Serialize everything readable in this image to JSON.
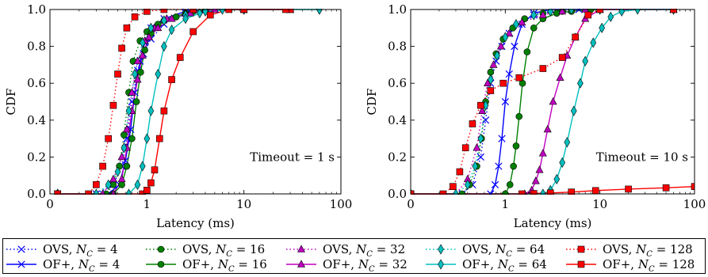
{
  "chart_data": [
    {
      "type": "line",
      "xscale": "log",
      "xlabel": "Latency (ms)",
      "ylabel": "CDF",
      "xlim": [
        0.1,
        100
      ],
      "ylim": [
        0.0,
        1.0
      ],
      "xticks": [
        "0",
        "1",
        "10",
        "100"
      ],
      "yticks": [
        "0.0",
        "0.2",
        "0.4",
        "0.6",
        "0.8",
        "1.0"
      ],
      "annotation": "Timeout = 1 s",
      "series": [
        {
          "key": "ovs4",
          "color": "#0000ff",
          "marker": "x",
          "dashed": true,
          "x": [
            0.12,
            0.3,
            0.45,
            0.55,
            0.62,
            0.7,
            0.8,
            0.92,
            1.1,
            1.5,
            2.5,
            4,
            10,
            30
          ],
          "y": [
            0.0,
            0.0,
            0.05,
            0.15,
            0.3,
            0.5,
            0.67,
            0.76,
            0.84,
            0.92,
            0.98,
            1.0,
            1.0,
            1.0
          ]
        },
        {
          "key": "of4",
          "color": "#0000ff",
          "marker": "x",
          "dashed": false,
          "x": [
            0.12,
            0.4,
            0.52,
            0.6,
            0.68,
            0.75,
            0.85,
            0.95,
            1.1,
            1.5,
            2.5,
            5,
            30
          ],
          "y": [
            0.0,
            0.0,
            0.05,
            0.18,
            0.35,
            0.55,
            0.72,
            0.82,
            0.9,
            0.95,
            0.99,
            1.0,
            1.0
          ]
        },
        {
          "key": "ovs16",
          "color": "#008000",
          "marker": "o",
          "dashed": true,
          "x": [
            0.12,
            0.38,
            0.45,
            0.52,
            0.58,
            0.65,
            0.72,
            0.85,
            1.0,
            1.3,
            2,
            3,
            10,
            30
          ],
          "y": [
            0.0,
            0.0,
            0.05,
            0.15,
            0.32,
            0.55,
            0.72,
            0.83,
            0.88,
            0.92,
            0.96,
            0.99,
            1.0,
            1.0
          ]
        },
        {
          "key": "of16",
          "color": "#008000",
          "marker": "o",
          "dashed": false,
          "x": [
            0.12,
            0.45,
            0.55,
            0.62,
            0.7,
            0.78,
            0.86,
            0.95,
            1.1,
            1.5,
            2.5,
            4,
            10,
            30
          ],
          "y": [
            0.0,
            0.0,
            0.05,
            0.15,
            0.3,
            0.5,
            0.66,
            0.78,
            0.87,
            0.94,
            0.98,
            1.0,
            1.0,
            1.0
          ]
        },
        {
          "key": "ovs32",
          "color": "#bf00bf",
          "marker": "^",
          "dashed": true,
          "x": [
            0.12,
            0.35,
            0.45,
            0.55,
            0.62,
            0.7,
            0.8,
            0.95,
            1.2,
            1.6,
            2.5,
            4,
            10,
            30
          ],
          "y": [
            0.0,
            0.0,
            0.08,
            0.2,
            0.35,
            0.55,
            0.72,
            0.83,
            0.9,
            0.95,
            0.98,
            1.0,
            1.0,
            1.0
          ]
        },
        {
          "key": "of32",
          "color": "#bf00bf",
          "marker": "^",
          "dashed": false,
          "x": [
            0.12,
            0.45,
            0.55,
            0.62,
            0.7,
            0.8,
            0.9,
            1.05,
            1.3,
            1.8,
            2.8,
            5,
            30
          ],
          "y": [
            0.0,
            0.0,
            0.08,
            0.25,
            0.45,
            0.62,
            0.75,
            0.85,
            0.9,
            0.95,
            0.98,
            1.0,
            1.0
          ]
        },
        {
          "key": "ovs64",
          "color": "#00bfbf",
          "marker": "d",
          "dashed": true,
          "x": [
            0.12,
            0.3,
            0.4,
            0.5,
            0.58,
            0.65,
            0.75,
            0.9,
            1.1,
            1.5,
            2.5,
            4,
            10,
            60
          ],
          "y": [
            0.0,
            0.0,
            0.05,
            0.12,
            0.25,
            0.45,
            0.65,
            0.82,
            0.9,
            0.94,
            0.97,
            0.99,
            1.0,
            1.0
          ]
        },
        {
          "key": "of64",
          "color": "#00bfbf",
          "marker": "d",
          "dashed": false,
          "x": [
            0.12,
            0.65,
            0.8,
            0.9,
            1.0,
            1.1,
            1.3,
            1.5,
            1.8,
            2.5,
            3.5,
            6,
            10,
            60
          ],
          "y": [
            0.0,
            0.0,
            0.05,
            0.15,
            0.3,
            0.45,
            0.65,
            0.8,
            0.89,
            0.95,
            0.98,
            1.0,
            1.0,
            1.0
          ]
        },
        {
          "key": "ovs128",
          "color": "#ff0000",
          "marker": "s",
          "dashed": true,
          "x": [
            0.12,
            0.25,
            0.3,
            0.35,
            0.4,
            0.45,
            0.5,
            0.55,
            0.62,
            0.75,
            1.0,
            1.5,
            3,
            10,
            30
          ],
          "y": [
            0.0,
            0.0,
            0.05,
            0.15,
            0.3,
            0.48,
            0.65,
            0.79,
            0.9,
            0.96,
            0.99,
            1.0,
            1.0,
            1.0,
            1.0
          ]
        },
        {
          "key": "of128",
          "color": "#ff0000",
          "marker": "s",
          "dashed": false,
          "x": [
            0.12,
            0.9,
            1.0,
            1.1,
            1.2,
            1.35,
            1.5,
            1.8,
            2.2,
            3,
            4.5,
            7,
            10,
            27
          ],
          "y": [
            0.0,
            0.0,
            0.02,
            0.06,
            0.13,
            0.3,
            0.45,
            0.62,
            0.74,
            0.88,
            0.97,
            1.0,
            1.0,
            1.0
          ]
        }
      ]
    },
    {
      "type": "line",
      "xscale": "log",
      "xlabel": "Latency (ms)",
      "ylabel": "CDF",
      "xlim": [
        0.1,
        100
      ],
      "ylim": [
        0.0,
        1.0
      ],
      "xticks": [
        "0",
        "1",
        "10",
        "100"
      ],
      "yticks": [
        "0.0",
        "0.2",
        "0.4",
        "0.6",
        "0.8",
        "1.0"
      ],
      "annotation": "Timeout = 10 s",
      "series": [
        {
          "key": "ovs4",
          "color": "#0000ff",
          "marker": "x",
          "dashed": true,
          "x": [
            0.1,
            0.35,
            0.45,
            0.55,
            0.62,
            0.7,
            0.8,
            0.92,
            1.1,
            1.4,
            2,
            3,
            6,
            10,
            60
          ],
          "y": [
            0.0,
            0.0,
            0.05,
            0.2,
            0.4,
            0.6,
            0.72,
            0.8,
            0.87,
            0.92,
            0.97,
            1.0,
            1.0,
            1.0,
            1.0
          ]
        },
        {
          "key": "of4",
          "color": "#0000ff",
          "marker": "x",
          "dashed": false,
          "x": [
            0.1,
            0.7,
            0.78,
            0.85,
            0.92,
            1.0,
            1.1,
            1.25,
            1.5,
            2,
            3,
            5,
            10,
            60
          ],
          "y": [
            0.0,
            0.0,
            0.05,
            0.15,
            0.3,
            0.5,
            0.65,
            0.8,
            0.92,
            0.98,
            1.0,
            1.0,
            1.0,
            1.0
          ]
        },
        {
          "key": "ovs16",
          "color": "#008000",
          "marker": "o",
          "dashed": true,
          "x": [
            0.1,
            0.35,
            0.42,
            0.5,
            0.56,
            0.62,
            0.7,
            0.8,
            0.95,
            1.2,
            1.6,
            2.5,
            4,
            10,
            60
          ],
          "y": [
            0.0,
            0.0,
            0.05,
            0.15,
            0.3,
            0.5,
            0.66,
            0.76,
            0.84,
            0.9,
            0.95,
            0.98,
            0.99,
            1.0,
            1.0
          ]
        },
        {
          "key": "of16",
          "color": "#008000",
          "marker": "o",
          "dashed": false,
          "x": [
            0.1,
            1.0,
            1.12,
            1.22,
            1.3,
            1.4,
            1.52,
            1.7,
            2.0,
            2.5,
            3.5,
            5,
            8,
            60
          ],
          "y": [
            0.0,
            0.0,
            0.05,
            0.15,
            0.26,
            0.42,
            0.6,
            0.77,
            0.9,
            0.95,
            0.98,
            0.99,
            1.0,
            1.0
          ]
        },
        {
          "key": "ovs32",
          "color": "#bf00bf",
          "marker": "^",
          "dashed": true,
          "x": [
            0.1,
            0.3,
            0.4,
            0.5,
            0.57,
            0.65,
            0.75,
            0.9,
            1.1,
            1.5,
            2.5,
            4,
            7,
            60
          ],
          "y": [
            0.0,
            0.0,
            0.08,
            0.25,
            0.45,
            0.6,
            0.7,
            0.8,
            0.87,
            0.93,
            0.97,
            0.99,
            1.0,
            1.0
          ]
        },
        {
          "key": "of32",
          "color": "#bf00bf",
          "marker": "^",
          "dashed": false,
          "x": [
            0.1,
            1.6,
            1.9,
            2.1,
            2.3,
            2.5,
            2.8,
            3.2,
            3.8,
            4.5,
            5.5,
            7,
            10,
            60
          ],
          "y": [
            0.0,
            0.0,
            0.02,
            0.07,
            0.13,
            0.22,
            0.35,
            0.5,
            0.63,
            0.75,
            0.85,
            0.95,
            1.0,
            1.0
          ]
        },
        {
          "key": "ovs64",
          "color": "#00bfbf",
          "marker": "d",
          "dashed": true,
          "x": [
            0.1,
            0.3,
            0.4,
            0.48,
            0.55,
            0.62,
            0.7,
            0.82,
            1.0,
            1.3,
            2,
            3,
            5,
            10,
            60
          ],
          "y": [
            0.0,
            0.0,
            0.05,
            0.15,
            0.3,
            0.48,
            0.62,
            0.75,
            0.85,
            0.92,
            0.97,
            0.99,
            1.0,
            1.0,
            1.0
          ]
        },
        {
          "key": "of64",
          "color": "#00bfbf",
          "marker": "d",
          "dashed": false,
          "x": [
            0.1,
            2.5,
            3.0,
            3.5,
            4.0,
            4.5,
            5.3,
            6.2,
            7.0,
            8.5,
            10.5,
            13,
            17,
            25,
            60
          ],
          "y": [
            0.0,
            0.0,
            0.02,
            0.08,
            0.17,
            0.28,
            0.45,
            0.6,
            0.72,
            0.82,
            0.9,
            0.96,
            0.99,
            1.0,
            1.0
          ]
        },
        {
          "key": "ovs128",
          "color": "#ff0000",
          "marker": "s",
          "dashed": true,
          "x": [
            0.1,
            0.22,
            0.28,
            0.33,
            0.38,
            0.45,
            0.55,
            0.7,
            0.95,
            1.4,
            2.5,
            4.0,
            5.5,
            7.5,
            10,
            60
          ],
          "y": [
            0.0,
            0.0,
            0.04,
            0.12,
            0.25,
            0.38,
            0.48,
            0.56,
            0.6,
            0.63,
            0.68,
            0.74,
            0.85,
            0.97,
            1.0,
            1.0
          ]
        },
        {
          "key": "of128",
          "color": "#ff0000",
          "marker": "s",
          "dashed": false,
          "x": [
            0.1,
            1.5,
            2,
            3,
            5,
            9,
            20,
            50,
            100
          ],
          "y": [
            0.0,
            0.0,
            0.002,
            0.005,
            0.01,
            0.018,
            0.026,
            0.033,
            0.04
          ]
        }
      ]
    }
  ],
  "legend": {
    "placement": "bottom",
    "entries": [
      {
        "key": "ovs4",
        "label": "OVS, N",
        "sub": "C",
        "eq": " = 4"
      },
      {
        "key": "of4",
        "label": "OF+, N",
        "sub": "C",
        "eq": " = 4"
      },
      {
        "key": "ovs16",
        "label": "OVS, N",
        "sub": "C",
        "eq": " = 16"
      },
      {
        "key": "of16",
        "label": "OF+, N",
        "sub": "C",
        "eq": " = 16"
      },
      {
        "key": "ovs32",
        "label": "OVS, N",
        "sub": "C",
        "eq": " = 32"
      },
      {
        "key": "of32",
        "label": "OF+, N",
        "sub": "C",
        "eq": " = 32"
      },
      {
        "key": "ovs64",
        "label": "OVS, N",
        "sub": "C",
        "eq": " = 64"
      },
      {
        "key": "of64",
        "label": "OF+, N",
        "sub": "C",
        "eq": " = 64"
      },
      {
        "key": "ovs128",
        "label": "OVS, N",
        "sub": "C",
        "eq": " = 128"
      },
      {
        "key": "of128",
        "label": "OF+, N",
        "sub": "C",
        "eq": " = 128"
      }
    ]
  }
}
